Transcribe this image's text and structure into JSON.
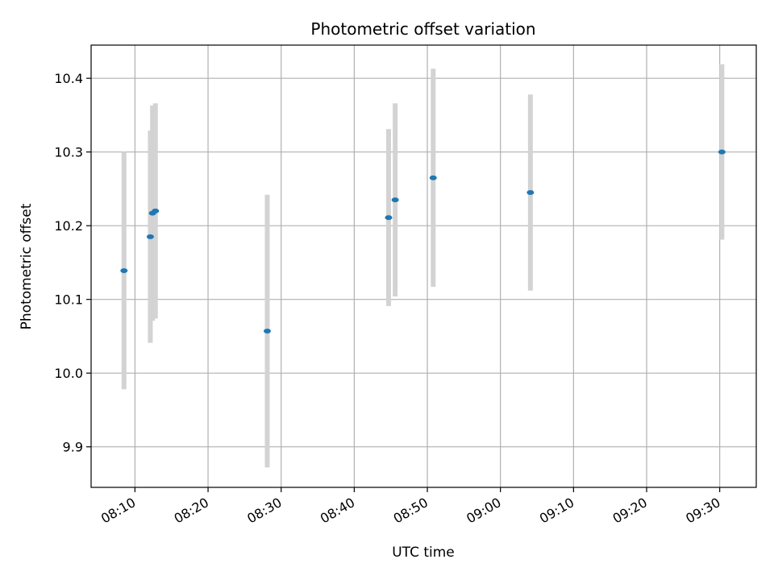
{
  "chart_data": {
    "type": "scatter",
    "title": "Photometric offset variation",
    "xlabel": "UTC time",
    "ylabel": "Photometric offset",
    "xlim": [
      "08:04",
      "09:35"
    ],
    "ylim": [
      9.845,
      10.445
    ],
    "x_ticks": [
      "08:10",
      "08:20",
      "08:30",
      "08:40",
      "08:50",
      "09:00",
      "09:10",
      "09:20",
      "09:30"
    ],
    "y_ticks": [
      "9.9",
      "10.0",
      "10.1",
      "10.2",
      "10.3",
      "10.4"
    ],
    "grid": true,
    "colors": {
      "points": "#1f77b4",
      "error_bars": "#d3d3d3",
      "grid": "#b0b0b0"
    },
    "points": [
      {
        "x": "08:08:30",
        "y": 10.139,
        "yerr": 0.161
      },
      {
        "x": "08:12:06",
        "y": 10.185,
        "yerr": 0.144
      },
      {
        "x": "08:12:24",
        "y": 10.217,
        "yerr": 0.146
      },
      {
        "x": "08:12:48",
        "y": 10.22,
        "yerr": 0.146
      },
      {
        "x": "08:28:06",
        "y": 10.057,
        "yerr": 0.185
      },
      {
        "x": "08:44:42",
        "y": 10.211,
        "yerr": 0.12
      },
      {
        "x": "08:45:36",
        "y": 10.235,
        "yerr": 0.131
      },
      {
        "x": "08:50:48",
        "y": 10.265,
        "yerr": 0.148
      },
      {
        "x": "09:04:06",
        "y": 10.245,
        "yerr": 0.133
      },
      {
        "x": "09:30:18",
        "y": 10.3,
        "yerr": 0.119
      }
    ]
  }
}
